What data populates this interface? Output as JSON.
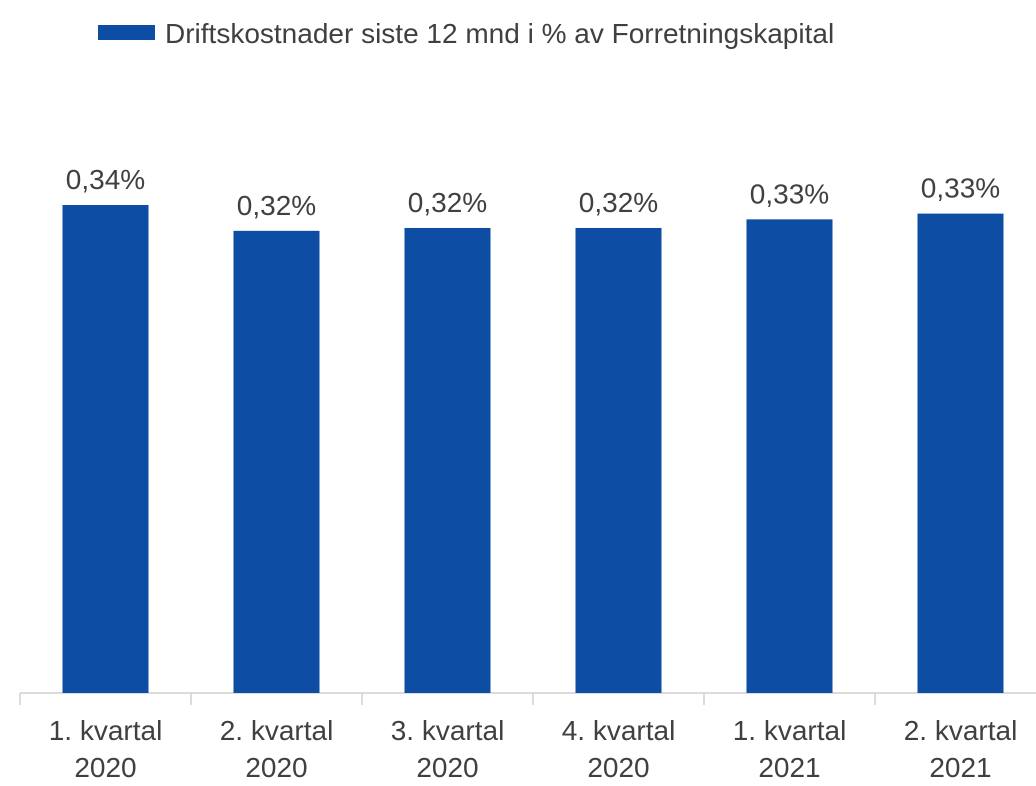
{
  "chart_data": {
    "type": "bar",
    "legend": "Driftskostnader siste 12 mnd i % av Forretningskapital",
    "categories": [
      "1. kvartal 2020",
      "2. kvartal 2020",
      "3. kvartal 2020",
      "4. kvartal 2020",
      "1. kvartal 2021",
      "2. kvartal 2021"
    ],
    "values": [
      0.34,
      0.322,
      0.324,
      0.324,
      0.33,
      0.334
    ],
    "value_labels": [
      "0,34%",
      "0,32%",
      "0,32%",
      "0,32%",
      "0,33%",
      "0,33%"
    ],
    "color": "#0e4da4"
  }
}
